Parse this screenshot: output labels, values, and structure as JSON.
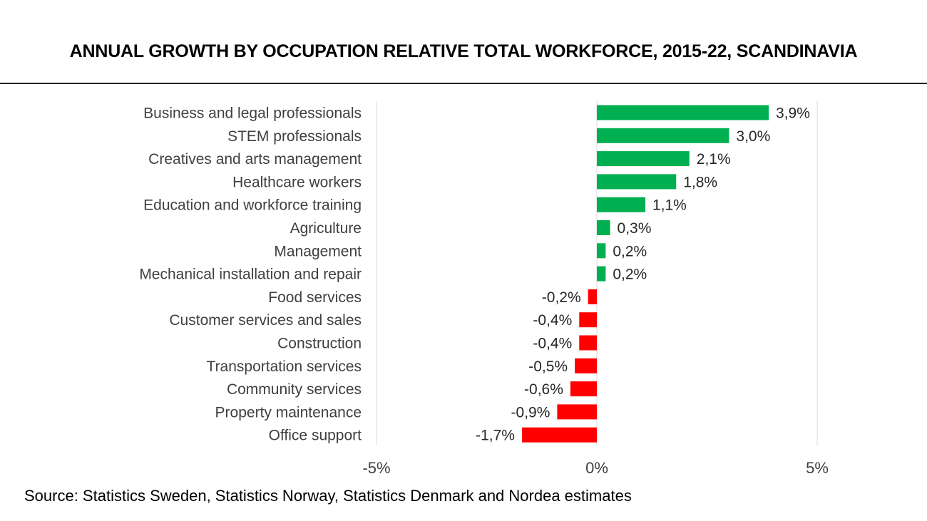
{
  "chart_data": {
    "type": "bar",
    "orientation": "horizontal",
    "title": "ANNUAL GROWTH BY OCCUPATION RELATIVE TOTAL WORKFORCE, 2015-22, SCANDINAVIA",
    "source": "Source: Statistics Sweden, Statistics Norway, Statistics Denmark and Nordea estimates",
    "categories": [
      "Business and legal professionals",
      "STEM professionals",
      "Creatives and arts management",
      "Healthcare workers",
      "Education and workforce training",
      "Agriculture",
      "Management",
      "Mechanical installation and repair",
      "Food services",
      "Customer services and sales",
      "Construction",
      "Transportation services",
      "Community services",
      "Property maintenance",
      "Office support"
    ],
    "values": [
      3.9,
      3.0,
      2.1,
      1.8,
      1.1,
      0.3,
      0.2,
      0.2,
      -0.2,
      -0.4,
      -0.4,
      -0.5,
      -0.6,
      -0.9,
      -1.7
    ],
    "value_labels": [
      "3,9%",
      "3,0%",
      "2,1%",
      "1,8%",
      "1,1%",
      "0,3%",
      "0,2%",
      "0,2%",
      "-0,2%",
      "-0,4%",
      "-0,4%",
      "-0,5%",
      "-0,6%",
      "-0,9%",
      "-1,7%"
    ],
    "xlim": [
      -5,
      5
    ],
    "xticks": [
      -5,
      0,
      5
    ],
    "xtick_labels": [
      "-5%",
      "0%",
      "5%"
    ],
    "grid": true,
    "colors": {
      "positive": "#00b050",
      "negative": "#ff0000",
      "grid": "#d9d9d9",
      "category_text": "#404040",
      "value_text": "#262626",
      "tick_text": "#404040"
    }
  }
}
